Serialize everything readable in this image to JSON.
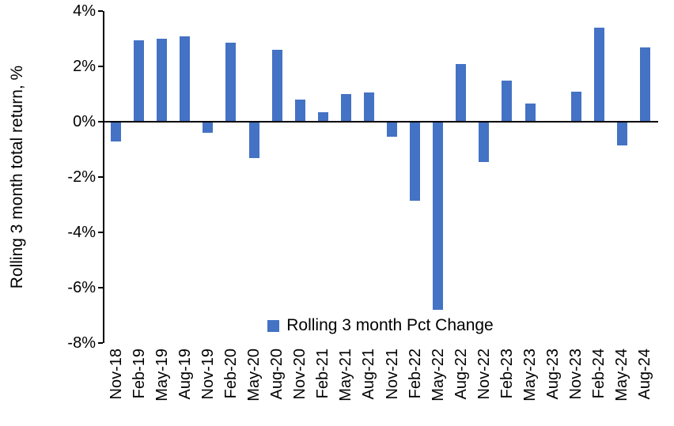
{
  "chart_data": {
    "type": "bar",
    "title": "",
    "xlabel": "",
    "ylabel": "Rolling 3 month total return, %",
    "legend": "Rolling 3 month Pct Change",
    "legend_position": "bottom-center-inside",
    "bar_color": "#4472C4",
    "axis_color": "#000000",
    "grid": false,
    "ylim": [
      -8,
      4
    ],
    "yticks": [
      4,
      2,
      0,
      -2,
      -4,
      -6,
      -8
    ],
    "ytick_suffix": "%",
    "categories": [
      "Nov-18",
      "Feb-19",
      "May-19",
      "Aug-19",
      "Nov-19",
      "Feb-20",
      "May-20",
      "Aug-20",
      "Nov-20",
      "Feb-21",
      "May-21",
      "Aug-21",
      "Nov-21",
      "Feb-22",
      "May-22",
      "Aug-22",
      "Nov-22",
      "Feb-23",
      "May-23",
      "Aug-23",
      "Nov-23",
      "Feb-24",
      "May-24",
      "Aug-24"
    ],
    "values": [
      -0.7,
      2.95,
      3.0,
      3.1,
      -0.4,
      2.85,
      -1.3,
      2.6,
      0.8,
      0.35,
      1.0,
      1.05,
      -0.55,
      -2.85,
      -6.8,
      2.1,
      -1.45,
      1.5,
      0.65,
      0,
      1.1,
      3.4,
      -0.85,
      2.7
    ]
  }
}
